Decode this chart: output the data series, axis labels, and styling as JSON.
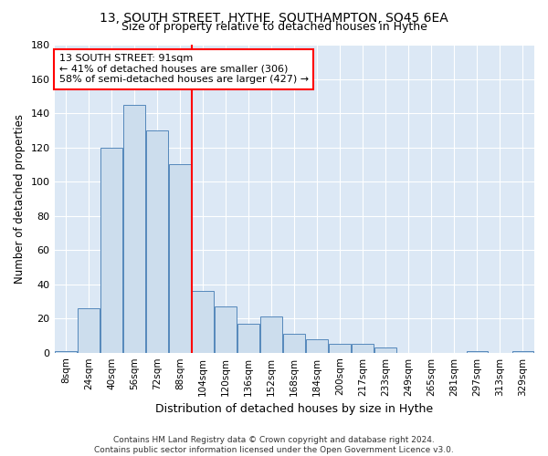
{
  "title": "13, SOUTH STREET, HYTHE, SOUTHAMPTON, SO45 6EA",
  "subtitle": "Size of property relative to detached houses in Hythe",
  "xlabel": "Distribution of detached houses by size in Hythe",
  "ylabel": "Number of detached properties",
  "categories": [
    "8sqm",
    "24sqm",
    "40sqm",
    "56sqm",
    "72sqm",
    "88sqm",
    "104sqm",
    "120sqm",
    "136sqm",
    "152sqm",
    "168sqm",
    "184sqm",
    "200sqm",
    "217sqm",
    "233sqm",
    "249sqm",
    "265sqm",
    "281sqm",
    "297sqm",
    "313sqm",
    "329sqm"
  ],
  "values": [
    1,
    26,
    120,
    145,
    130,
    110,
    36,
    27,
    17,
    21,
    11,
    8,
    5,
    5,
    3,
    0,
    0,
    0,
    1,
    0,
    1
  ],
  "bar_color": "#ccdded",
  "bar_edge_color": "#5588bb",
  "vline_x_index": 5,
  "vline_color": "red",
  "annotation_text": "13 SOUTH STREET: 91sqm\n← 41% of detached houses are smaller (306)\n58% of semi-detached houses are larger (427) →",
  "annotation_box_color": "white",
  "annotation_box_edge": "red",
  "ylim": [
    0,
    180
  ],
  "yticks": [
    0,
    20,
    40,
    60,
    80,
    100,
    120,
    140,
    160,
    180
  ],
  "footer1": "Contains HM Land Registry data © Crown copyright and database right 2024.",
  "footer2": "Contains public sector information licensed under the Open Government Licence v3.0.",
  "bg_color": "#dce8f5"
}
